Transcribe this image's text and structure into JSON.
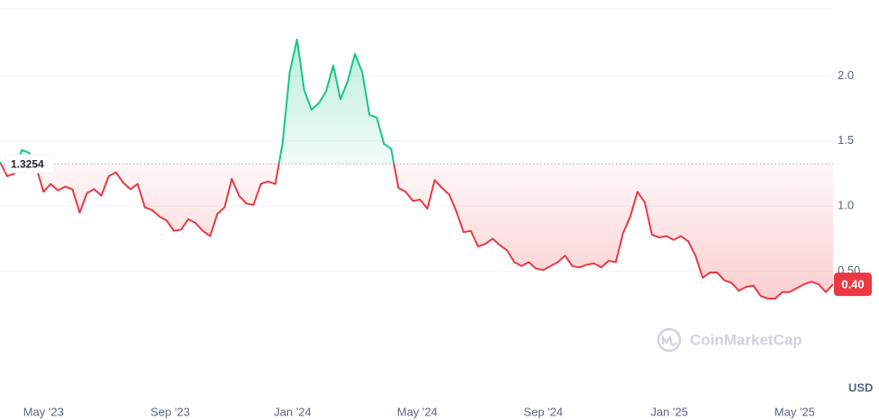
{
  "chart_data": {
    "type": "line",
    "values": [
      1.34,
      1.23,
      1.25,
      1.43,
      1.41,
      1.3,
      1.11,
      1.17,
      1.12,
      1.15,
      1.13,
      0.95,
      1.1,
      1.13,
      1.08,
      1.23,
      1.26,
      1.18,
      1.13,
      1.17,
      0.99,
      0.97,
      0.92,
      0.89,
      0.81,
      0.82,
      0.9,
      0.87,
      0.81,
      0.77,
      0.94,
      0.99,
      1.21,
      1.08,
      1.02,
      1.01,
      1.17,
      1.19,
      1.17,
      1.48,
      2.03,
      2.28,
      1.89,
      1.74,
      1.79,
      1.88,
      2.08,
      1.82,
      1.96,
      2.17,
      2.03,
      1.7,
      1.68,
      1.48,
      1.44,
      1.14,
      1.11,
      1.04,
      1.05,
      0.98,
      1.2,
      1.14,
      1.09,
      0.96,
      0.8,
      0.81,
      0.69,
      0.71,
      0.75,
      0.7,
      0.66,
      0.57,
      0.54,
      0.57,
      0.52,
      0.51,
      0.54,
      0.57,
      0.62,
      0.54,
      0.53,
      0.55,
      0.56,
      0.53,
      0.58,
      0.57,
      0.79,
      0.92,
      1.11,
      1.03,
      0.78,
      0.76,
      0.77,
      0.74,
      0.77,
      0.73,
      0.62,
      0.45,
      0.49,
      0.49,
      0.43,
      0.41,
      0.35,
      0.38,
      0.39,
      0.31,
      0.29,
      0.29,
      0.34,
      0.34,
      0.37,
      0.4,
      0.42,
      0.4,
      0.34,
      0.4
    ],
    "baseline": 1.3254,
    "current_price": {
      "value": 0.4,
      "label": "0.40"
    },
    "up_color": "#16c784",
    "down_color": "#ea3943",
    "ylim": [
      0,
      2.5
    ],
    "yticks": [
      {
        "value": 0.5,
        "label": "0.50"
      },
      {
        "value": 1,
        "label": "1.0"
      },
      {
        "value": 1.5,
        "label": "1.5"
      },
      {
        "value": 2,
        "label": "2.0"
      }
    ],
    "xticks": [
      {
        "value": 6,
        "label": "May '23"
      },
      {
        "value": 23.5,
        "label": "Sep '23"
      },
      {
        "value": 40.4,
        "label": "Jan '24"
      },
      {
        "value": 57.6,
        "label": "May '24"
      },
      {
        "value": 75,
        "label": "Sep '24"
      },
      {
        "value": 92.4,
        "label": "Jan '25"
      },
      {
        "value": 109.7,
        "label": "May '25"
      }
    ],
    "grid": true,
    "currency": "USD",
    "watermark": "CoinMarketCap"
  }
}
